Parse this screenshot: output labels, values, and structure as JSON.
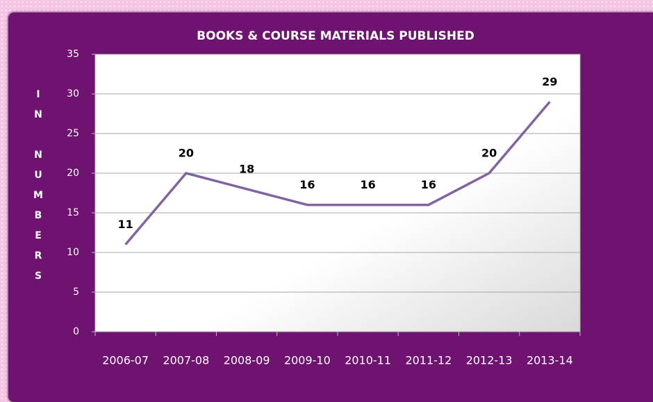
{
  "chart_data": {
    "type": "line",
    "title": "BOOKS & COURSE MATERIALS PUBLISHED",
    "y_label": "IN NUMBERS",
    "categories": [
      "2006-07",
      "2007-08",
      "2008-09",
      "2009-10",
      "2010-11",
      "2011-12",
      "2012-13",
      "2013-14"
    ],
    "values": [
      11,
      20,
      18,
      16,
      16,
      16,
      20,
      29
    ],
    "color": "#8064a2",
    "ylim": [
      0,
      35
    ],
    "yticks": [
      0,
      5,
      10,
      15,
      20,
      25,
      30,
      35
    ],
    "grid": true
  }
}
